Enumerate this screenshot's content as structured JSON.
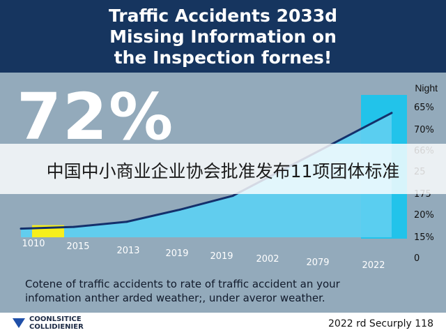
{
  "header": {
    "title_lines": [
      "Traffic Accidents 2033d",
      "Missing Information on",
      "the Inspection fornes!"
    ]
  },
  "overlay_banner": "中国中小商业企业协会批准发布11项团体标准",
  "chart_data": {
    "type": "area",
    "big_stat": "72%",
    "y_axis_top_label": "Night",
    "y_tick_labels": [
      "65%",
      "70%",
      "66%",
      "25",
      "175",
      "20%",
      "15%",
      "0"
    ],
    "x_tick_labels": [
      "1010",
      "2015",
      "2013",
      "2019",
      "2019",
      "2002",
      "2079",
      "2022"
    ],
    "x": [
      0,
      1,
      2,
      3,
      4,
      5,
      6,
      7
    ],
    "values": [
      5,
      6,
      9,
      16,
      24,
      40,
      56,
      72
    ],
    "ylim": [
      0,
      80
    ],
    "grid": false,
    "colors": {
      "area": "#5ecff0",
      "line": "#14306b",
      "highlight": "#f7ef1c",
      "bar": "#22c3ea"
    }
  },
  "caption": {
    "lines": [
      "Cotene of traffic accidents to rate of traffic accident an your",
      "infomation anther arded weather;, under averor weather."
    ]
  },
  "footer": {
    "logo_lines": [
      "COONLSITICE",
      "COLLIDIENIER"
    ],
    "right_text": "2022 rd Securply 118"
  }
}
